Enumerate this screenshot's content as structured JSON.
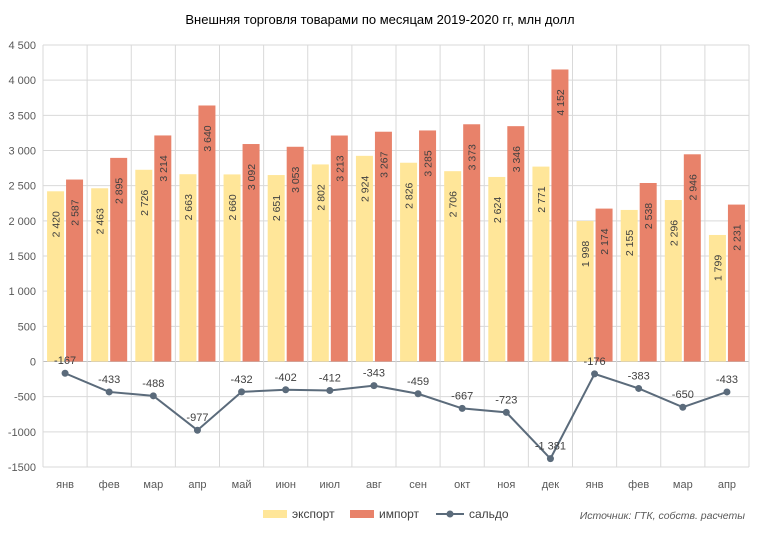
{
  "chart_data": {
    "type": "bar",
    "title": "Внешняя торговля товарами по месяцам 2019-2020 гг, млн долл",
    "categories": [
      "янв",
      "фев",
      "мар",
      "апр",
      "май",
      "июн",
      "июл",
      "авг",
      "сен",
      "окт",
      "ноя",
      "дек",
      "янв",
      "фев",
      "мар",
      "апр"
    ],
    "series": [
      {
        "name": "экспорт",
        "type": "bar",
        "color": "#FFE699",
        "values": [
          2420,
          2463,
          2726,
          2663,
          2660,
          2651,
          2802,
          2924,
          2826,
          2706,
          2624,
          2771,
          1998,
          2155,
          2296,
          1799
        ],
        "labels": [
          "2 420",
          "2 463",
          "2 726",
          "2 663",
          "2 660",
          "2 651",
          "2 802",
          "2 924",
          "2 826",
          "2 706",
          "2 624",
          "2 771",
          "1 998",
          "2 155",
          "2 296",
          "1 799"
        ]
      },
      {
        "name": "импорт",
        "type": "bar",
        "color": "#E8826A",
        "values": [
          2587,
          2895,
          3214,
          3640,
          3092,
          3053,
          3213,
          3267,
          3285,
          3373,
          3346,
          4152,
          2174,
          2538,
          2946,
          2231
        ],
        "labels": [
          "2 587",
          "2 895",
          "3 214",
          "3 640",
          "3 092",
          "3 053",
          "3 213",
          "3 267",
          "3 285",
          "3 373",
          "3 346",
          "4 152",
          "2 174",
          "2 538",
          "2 946",
          "2 231"
        ]
      },
      {
        "name": "сальдо",
        "type": "line",
        "color": "#5B6B7B",
        "values": [
          -167,
          -433,
          -488,
          -977,
          -432,
          -402,
          -412,
          -343,
          -459,
          -667,
          -723,
          -1381,
          -176,
          -383,
          -650,
          -433
        ],
        "labels": [
          "-167",
          "-433",
          "-488",
          "-977",
          "-432",
          "-402",
          "-412",
          "-343",
          "-459",
          "-667",
          "-723",
          "-1 381",
          "-176",
          "-383",
          "-650",
          "-433"
        ]
      }
    ],
    "ylim": [
      -1500,
      4500
    ],
    "yticks": [
      4500,
      4000,
      3500,
      3000,
      2500,
      2000,
      1500,
      1000,
      500,
      0,
      -500,
      -1000,
      -1500
    ],
    "ytick_labels": [
      "4 500",
      "4 000",
      "3 500",
      "3 000",
      "2 500",
      "2 000",
      "1 500",
      "1 000",
      "500",
      "0",
      "-500",
      "-1000",
      "-1500"
    ],
    "xlabel": "",
    "ylabel": "",
    "grid": true,
    "legend_position": "bottom",
    "source": "Источник: ГТК, собств. расчеты"
  }
}
